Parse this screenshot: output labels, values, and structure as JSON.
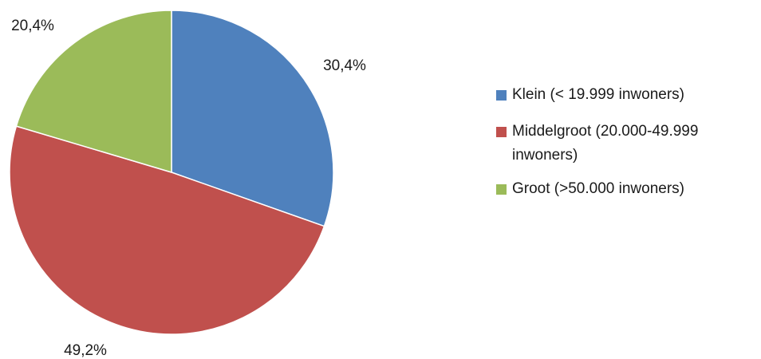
{
  "chart_data": {
    "type": "pie",
    "title": "",
    "slices": [
      {
        "label": "Klein (< 19.999 inwoners)",
        "value": 30.4,
        "value_label": "30,4%",
        "color": "#4F81BD"
      },
      {
        "label": "Middelgroot (20.000-49.999 inwoners)",
        "value": 49.2,
        "value_label": "49,2%",
        "color": "#C0504D"
      },
      {
        "label": "Groot (>50.000 inwoners)",
        "value": 20.4,
        "value_label": "20,4%",
        "color": "#9BBB59"
      }
    ],
    "start_angle": "12 o'clock, clockwise",
    "legend_position": "right"
  }
}
